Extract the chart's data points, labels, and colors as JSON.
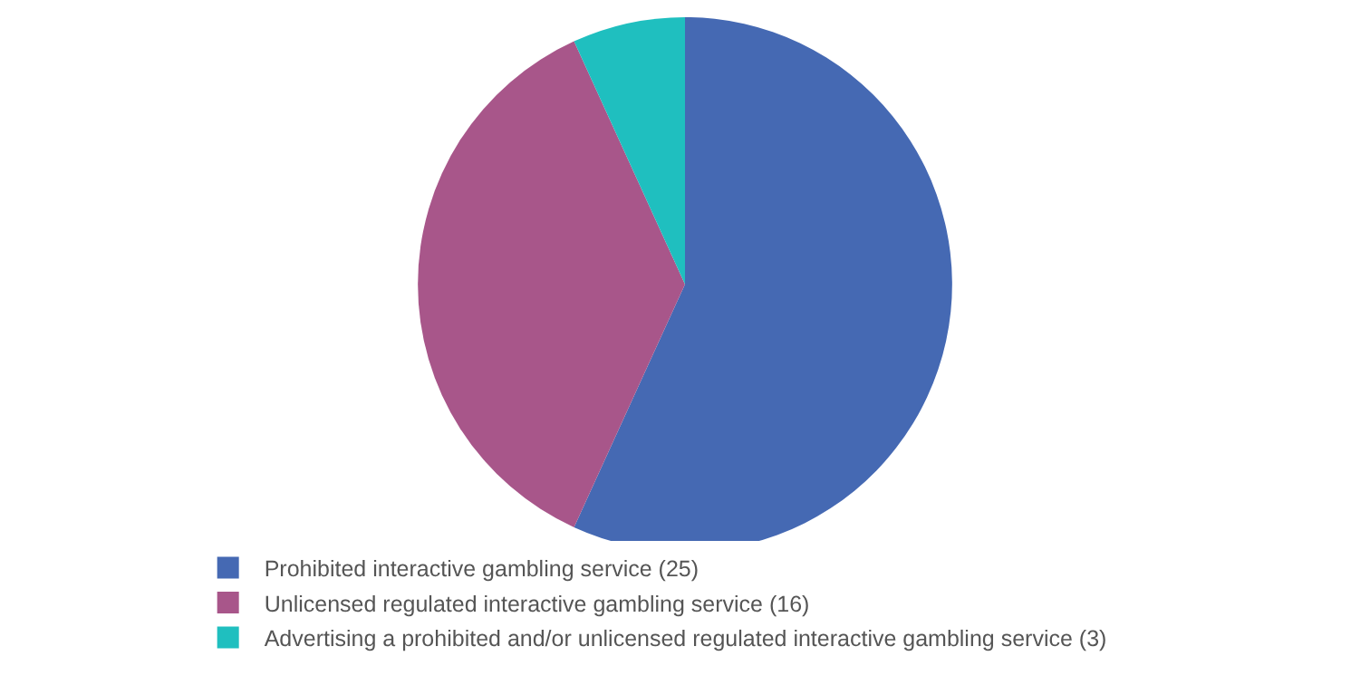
{
  "chart_data": {
    "type": "pie",
    "categories": [
      "Prohibited interactive gambling service (25)",
      "Unlicensed regulated interactive gambling service (16)",
      "Advertising a prohibited and/or unlicensed regulated interactive gambling service (3)"
    ],
    "values": [
      25,
      16,
      3
    ],
    "colors": [
      "#4569b3",
      "#a8568a",
      "#1fbfbf"
    ],
    "legend": "bottom"
  }
}
